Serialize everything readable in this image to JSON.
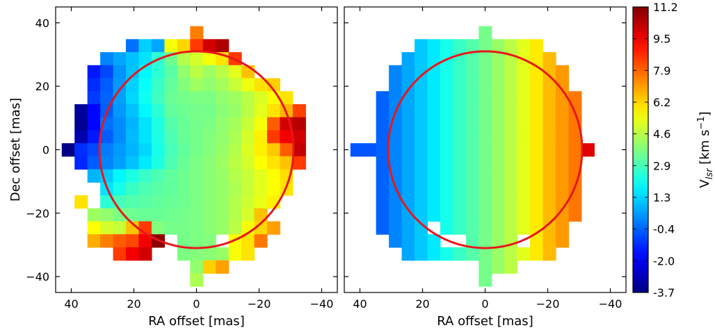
{
  "chart_data": [
    {
      "type": "heatmap",
      "panel": "left",
      "title": "",
      "xlabel": "RA offset [mas]",
      "ylabel": "Dec offset [mas]",
      "xlim": [
        45,
        -45
      ],
      "ylim": [
        -45,
        45
      ],
      "x_ticks": [
        "40",
        "20",
        "0",
        "−20",
        "−40"
      ],
      "y_ticks": [
        "40",
        "20",
        "0",
        "−20",
        "−40"
      ],
      "cell_size_mas": 4.1,
      "grid_x": [
        41,
        36.9,
        32.8,
        28.7,
        24.6,
        20.5,
        16.4,
        12.3,
        8.2,
        4.1,
        0,
        -4.1,
        -8.2,
        -12.3,
        -16.4,
        -20.5,
        -24.6,
        -28.7,
        -32.8,
        -36.9
      ],
      "grid_y": [
        41,
        36.9,
        32.8,
        28.7,
        24.6,
        20.5,
        16.4,
        12.3,
        8.2,
        4.1,
        0,
        -4.1,
        -8.2,
        -12.3,
        -16.4,
        -20.5,
        -24.6,
        -28.7,
        -32.8,
        -36.9,
        -41
      ],
      "velocity_grid": [
        [
          null,
          null,
          null,
          null,
          null,
          null,
          null,
          null,
          null,
          null,
          null,
          null,
          null,
          null,
          null,
          null,
          null,
          null,
          null,
          null
        ],
        [
          null,
          null,
          null,
          null,
          null,
          null,
          null,
          null,
          null,
          null,
          7.5,
          null,
          null,
          null,
          null,
          null,
          null,
          null,
          null,
          null
        ],
        [
          null,
          null,
          null,
          null,
          null,
          -0.2,
          1.2,
          0.6,
          5.5,
          6.2,
          8.5,
          10,
          10.5,
          null,
          null,
          null,
          null,
          null,
          null,
          null
        ],
        [
          null,
          null,
          null,
          0.1,
          0.6,
          1.0,
          1.5,
          2.5,
          3.5,
          4.5,
          5.0,
          5.5,
          6.0,
          8.5,
          null,
          null,
          null,
          null,
          null,
          null
        ],
        [
          null,
          null,
          -1.5,
          -0.8,
          0.3,
          1.0,
          1.8,
          2.5,
          3.2,
          4.0,
          4.6,
          4.2,
          4.6,
          5.2,
          6.5,
          null,
          null,
          null,
          null,
          null
        ],
        [
          null,
          null,
          -1.2,
          -0.5,
          0.4,
          1.2,
          2.0,
          2.7,
          3.3,
          3.8,
          4.2,
          4.0,
          4.3,
          4.8,
          5.4,
          6.0,
          6.3,
          null,
          null,
          null
        ],
        [
          null,
          null,
          -1.0,
          -0.4,
          0.5,
          1.3,
          2.1,
          2.8,
          3.4,
          3.6,
          3.7,
          3.7,
          4.0,
          4.2,
          4.6,
          5.1,
          5.6,
          6.0,
          null,
          null
        ],
        [
          null,
          -3.3,
          -1.8,
          -0.5,
          0.4,
          1.0,
          1.8,
          2.5,
          3.3,
          3.5,
          3.6,
          3.6,
          3.9,
          4.1,
          4.6,
          5.2,
          6.0,
          6.7,
          8.4,
          null
        ],
        [
          null,
          -3.4,
          -1.8,
          -0.2,
          0.2,
          0.8,
          1.5,
          2.3,
          3.1,
          3.4,
          3.6,
          3.7,
          4.0,
          4.3,
          4.8,
          5.5,
          8.0,
          10.0,
          10.4,
          null
        ],
        [
          null,
          -3.0,
          -1.5,
          -0.5,
          0.2,
          0.9,
          1.5,
          2.3,
          3.0,
          3.4,
          3.6,
          3.8,
          4.0,
          4.4,
          5.0,
          5.8,
          8.5,
          9.5,
          10.0,
          null
        ],
        [
          -3.6,
          -1.2,
          -0.8,
          0.0,
          0.4,
          0.8,
          1.3,
          2.2,
          2.9,
          3.3,
          3.6,
          3.8,
          4.1,
          4.5,
          5.1,
          5.8,
          6.4,
          8.0,
          10.2,
          null
        ],
        [
          null,
          -1.3,
          -0.5,
          0.1,
          0.5,
          1.0,
          1.6,
          2.3,
          3.0,
          3.4,
          3.7,
          3.9,
          4.2,
          4.6,
          5.0,
          5.6,
          6.0,
          6.5,
          8.5,
          null
        ],
        [
          null,
          null,
          0.8,
          1.1,
          1.8,
          2.3,
          2.7,
          3.0,
          3.3,
          3.5,
          3.7,
          3.9,
          4.1,
          4.5,
          4.8,
          5.2,
          5.6,
          6.1,
          null,
          null
        ],
        [
          null,
          null,
          null,
          1.5,
          2.2,
          2.7,
          3.0,
          3.2,
          3.3,
          3.5,
          3.7,
          3.9,
          4.1,
          4.4,
          4.8,
          5.2,
          5.6,
          6.0,
          null,
          null
        ],
        [
          null,
          6.0,
          null,
          2.5,
          2.9,
          3.1,
          3.2,
          3.3,
          3.4,
          3.5,
          3.7,
          3.9,
          4.1,
          4.5,
          4.9,
          5.3,
          5.8,
          null,
          null,
          null
        ],
        [
          null,
          null,
          4.2,
          4.0,
          3.7,
          3.5,
          3.4,
          3.4,
          3.5,
          3.6,
          3.7,
          3.9,
          4.1,
          4.5,
          5.0,
          6.5,
          null,
          null,
          null,
          null
        ],
        [
          null,
          null,
          5.6,
          5.0,
          4.8,
          6.5,
          8.5,
          3.8,
          3.6,
          3.6,
          3.7,
          3.9,
          4.1,
          4.6,
          5.5,
          6.2,
          7.0,
          null,
          null,
          null
        ],
        [
          null,
          null,
          6.8,
          7.5,
          8.0,
          8.3,
          9.5,
          11,
          null,
          3.6,
          3.7,
          3.8,
          null,
          5.6,
          6.0,
          7.6,
          null,
          null,
          null,
          null
        ],
        [
          null,
          null,
          null,
          null,
          8.5,
          9.5,
          10,
          null,
          null,
          3.7,
          3.8,
          3.9,
          4.1,
          5.5,
          6.0,
          null,
          null,
          null,
          null,
          null
        ],
        [
          null,
          null,
          null,
          null,
          null,
          null,
          null,
          null,
          null,
          null,
          4.0,
          6.3,
          7.0,
          null,
          null,
          null,
          null,
          null,
          null,
          null
        ],
        [
          null,
          null,
          null,
          null,
          null,
          null,
          null,
          null,
          null,
          null,
          4.4,
          null,
          null,
          null,
          null,
          null,
          null,
          null,
          null,
          null
        ]
      ],
      "circle": {
        "center": [
          0,
          0
        ],
        "radius_mas": 31,
        "color": "#e8161c"
      }
    },
    {
      "type": "heatmap",
      "panel": "right",
      "title": "",
      "xlabel": "RA offset [mas]",
      "ylabel": "",
      "xlim": [
        45,
        -45
      ],
      "ylim": [
        -45,
        45
      ],
      "x_ticks": [
        "40",
        "20",
        "0",
        "−20",
        "−40"
      ],
      "cell_size_mas": 4.1,
      "grid_x": [
        41,
        36.9,
        32.8,
        28.7,
        24.6,
        20.5,
        16.4,
        12.3,
        8.2,
        4.1,
        0,
        -4.1,
        -8.2,
        -12.3,
        -16.4,
        -20.5,
        -24.6,
        -28.7,
        -32.8,
        -36.9
      ],
      "grid_y": [
        41,
        36.9,
        32.8,
        28.7,
        24.6,
        20.5,
        16.4,
        12.3,
        8.2,
        4.1,
        0,
        -4.1,
        -8.2,
        -12.3,
        -16.4,
        -20.5,
        -24.6,
        -28.7,
        -32.8,
        -36.9,
        -41
      ],
      "column_velocity": [
        -0.8,
        -0.6,
        -0.4,
        0.1,
        0.6,
        1.1,
        1.6,
        2.2,
        2.7,
        3.1,
        3.6,
        4.1,
        4.6,
        5.2,
        5.9,
        6.6,
        7.1,
        7.6,
        8.2,
        8.8
      ],
      "row_extent_cols": [
        null,
        [
          10,
          10
        ],
        [
          5,
          14
        ],
        [
          4,
          15
        ],
        [
          3,
          16
        ],
        [
          3,
          16
        ],
        [
          2,
          17
        ],
        [
          2,
          17
        ],
        [
          2,
          17
        ],
        [
          2,
          17
        ],
        [
          0,
          18
        ],
        [
          2,
          17
        ],
        [
          2,
          17
        ],
        [
          2,
          17
        ],
        [
          2,
          17
        ],
        [
          2,
          17
        ],
        [
          2,
          16
        ],
        [
          3,
          16
        ],
        [
          4,
          15
        ],
        [
          10,
          12
        ],
        [
          10,
          10
        ]
      ],
      "empty_cells": [
        [
          16,
          6
        ],
        [
          17,
          7
        ],
        [
          17,
          8
        ],
        [
          17,
          13
        ]
      ],
      "overrides": [
        [
          10,
          0,
          -0.6
        ],
        [
          10,
          18,
          9.8
        ],
        [
          10,
          19,
          null
        ]
      ],
      "circle": {
        "center": [
          0,
          0
        ],
        "radius_mas": 31,
        "color": "#e8161c"
      }
    }
  ],
  "colorbar": {
    "label_main": "V",
    "label_sub": "lsr",
    "label_units": " [km s",
    "label_exp": "−1",
    "label_close": "]",
    "vmin": -3.7,
    "vmax": 11.2,
    "colormap": "jet",
    "tick_labels": [
      "11.2",
      "9.5",
      "7.9",
      "6.2",
      "4.6",
      "2.9",
      "1.3",
      "-0.4",
      "-2.0",
      "-3.7"
    ]
  }
}
